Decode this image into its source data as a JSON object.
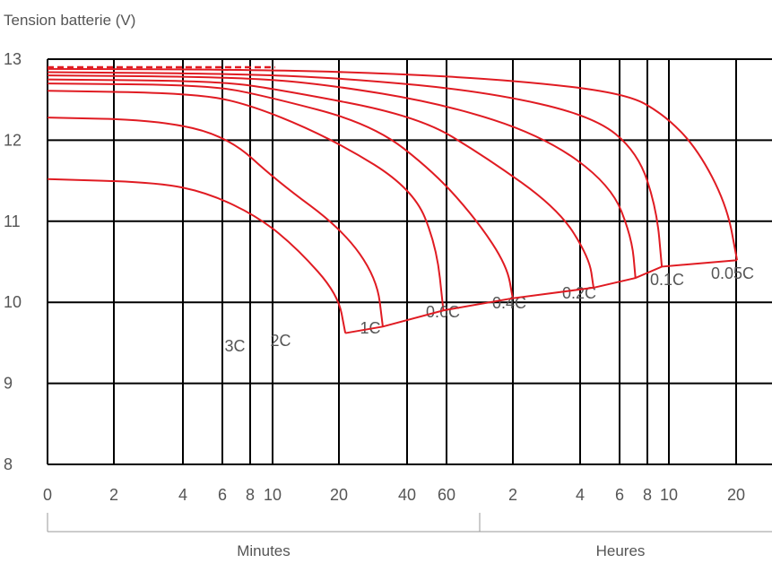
{
  "chart_data": {
    "type": "line",
    "ylabel": "Tension batterie (V)",
    "ylim": [
      8,
      13
    ],
    "yticks": [
      "8",
      "9",
      "10",
      "11",
      "12",
      "13"
    ],
    "x_scale": "log (durée de décharge)",
    "xticks": [
      "0",
      "2",
      "4",
      "6",
      "8",
      "10",
      "20",
      "40",
      "60",
      "2",
      "4",
      "6",
      "8",
      "10",
      "20"
    ],
    "x_groups": [
      "Minutes",
      "Heures"
    ],
    "grid": true,
    "series_color": "#e01b22",
    "series": [
      {
        "name": "3C",
        "points": [
          [
            0,
            11.52
          ],
          [
            0.74,
            11.48
          ],
          [
            1.2,
            11.35
          ],
          [
            2.0,
            11.05
          ],
          [
            2.45,
            10.65
          ],
          [
            2.72,
            10.1
          ],
          [
            2.77,
            9.62
          ]
        ]
      },
      {
        "name": "2C",
        "points": [
          [
            0,
            12.28
          ],
          [
            0.74,
            12.25
          ],
          [
            1.45,
            12.05
          ],
          [
            2.3,
            11.5
          ],
          [
            2.75,
            10.9
          ],
          [
            2.98,
            10.3
          ],
          [
            3.02,
            9.7
          ]
        ]
      },
      {
        "name": "1C",
        "points": [
          [
            0,
            12.61
          ],
          [
            1.0,
            12.58
          ],
          [
            1.8,
            12.45
          ],
          [
            2.7,
            12.0
          ],
          [
            3.25,
            11.4
          ],
          [
            3.52,
            10.7
          ],
          [
            3.6,
            9.9
          ]
        ]
      },
      {
        "name": "0.6C",
        "points": [
          [
            0,
            12.7
          ],
          [
            1.2,
            12.68
          ],
          [
            2.1,
            12.55
          ],
          [
            2.95,
            12.2
          ],
          [
            3.5,
            11.6
          ],
          [
            3.85,
            11.0
          ],
          [
            4.05,
            10.45
          ],
          [
            4.09,
            10.05
          ]
        ]
      },
      {
        "name": "0.4C",
        "points": [
          [
            0,
            12.75
          ],
          [
            1.3,
            12.73
          ],
          [
            2.3,
            12.63
          ],
          [
            3.3,
            12.3
          ],
          [
            3.9,
            11.8
          ],
          [
            4.4,
            11.15
          ],
          [
            4.65,
            10.55
          ],
          [
            4.7,
            10.18
          ]
        ]
      },
      {
        "name": "0.2C",
        "points": [
          [
            0,
            12.8
          ],
          [
            1.5,
            12.78
          ],
          [
            2.6,
            12.7
          ],
          [
            3.6,
            12.45
          ],
          [
            4.3,
            12.05
          ],
          [
            4.9,
            11.45
          ],
          [
            5.2,
            10.8
          ],
          [
            5.26,
            10.3
          ]
        ]
      },
      {
        "name": "0.1C",
        "points": [
          [
            0,
            12.84
          ],
          [
            1.6,
            12.82
          ],
          [
            2.8,
            12.76
          ],
          [
            3.9,
            12.6
          ],
          [
            4.7,
            12.3
          ],
          [
            5.3,
            11.85
          ],
          [
            5.65,
            11.15
          ],
          [
            5.76,
            10.44
          ]
        ]
      },
      {
        "name": "0.05C",
        "points": [
          [
            0,
            12.88
          ],
          [
            1.8,
            12.87
          ],
          [
            3.0,
            12.83
          ],
          [
            4.1,
            12.74
          ],
          [
            5.1,
            12.58
          ],
          [
            5.8,
            12.32
          ],
          [
            6.1,
            11.9
          ],
          [
            6.3,
            11.2
          ],
          [
            6.37,
            10.52
          ]
        ]
      }
    ],
    "dashed_line": {
      "y": 12.9,
      "x": [
        0,
        2.29
      ],
      "color": "#e01b22"
    },
    "endpoint_line": [
      [
        2.77,
        9.62
      ],
      [
        3.02,
        9.7
      ],
      [
        3.6,
        9.9
      ],
      [
        4.09,
        10.05
      ],
      [
        4.7,
        10.18
      ],
      [
        5.26,
        10.3
      ],
      [
        5.76,
        10.44
      ],
      [
        6.37,
        10.52
      ]
    ]
  }
}
